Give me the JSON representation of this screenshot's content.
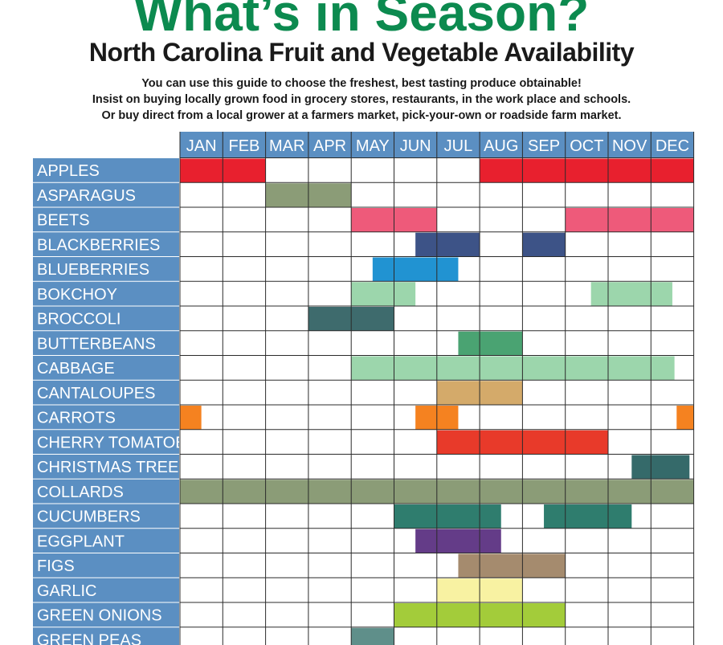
{
  "header": {
    "title": "What’s in Season?",
    "subtitle": "North Carolina Fruit and Vegetable Availability",
    "intro_lines": [
      "You can use this guide to choose the freshest, best tasting produce obtainable!",
      "Insist on buying locally grown food in grocery stores, restaurants, in the work place and schools.",
      "Or buy direct from a local grower at a farmers market, pick-your-own or roadside farm market."
    ]
  },
  "chart_data": {
    "type": "table",
    "months": [
      "JAN",
      "FEB",
      "MAR",
      "APR",
      "MAY",
      "JUN",
      "JUL",
      "AUG",
      "SEP",
      "OCT",
      "NOV",
      "DEC"
    ],
    "header_color": "#5b8fc2",
    "rows": [
      {
        "name": "APPLES",
        "color": "#e8202e",
        "periods": [
          [
            0,
            2
          ],
          [
            7,
            12
          ]
        ]
      },
      {
        "name": "ASPARAGUS",
        "color": "#8b9c77",
        "periods": [
          [
            2,
            4
          ]
        ]
      },
      {
        "name": "BEETS",
        "color": "#ee5a7a",
        "periods": [
          [
            4,
            6
          ],
          [
            9,
            12
          ]
        ]
      },
      {
        "name": "BLACKBERRIES",
        "color": "#3d5387",
        "periods": [
          [
            5.5,
            7
          ],
          [
            8,
            9
          ]
        ]
      },
      {
        "name": "BLUEBERRIES",
        "color": "#2193d2",
        "periods": [
          [
            4.5,
            6.5
          ]
        ]
      },
      {
        "name": "BOKCHOY",
        "color": "#9cd6ac",
        "periods": [
          [
            4,
            5.5
          ],
          [
            9.6,
            11.5
          ]
        ]
      },
      {
        "name": "BROCCOLI",
        "color": "#3e6b6d",
        "periods": [
          [
            3,
            5
          ]
        ]
      },
      {
        "name": "BUTTERBEANS",
        "color": "#4aa372",
        "periods": [
          [
            6.5,
            8
          ]
        ]
      },
      {
        "name": "CABBAGE",
        "color": "#9cd6ac",
        "periods": [
          [
            4,
            11.55
          ]
        ]
      },
      {
        "name": "CANTALOUPES",
        "color": "#d4aa6a",
        "periods": [
          [
            6,
            8
          ]
        ]
      },
      {
        "name": "CARROTS",
        "color": "#f58220",
        "periods": [
          [
            0,
            0.5
          ],
          [
            5.5,
            6.5
          ],
          [
            11.6,
            12
          ]
        ]
      },
      {
        "name": "CHERRY  TOMATOES",
        "color": "#e83a2a",
        "periods": [
          [
            6,
            10
          ]
        ]
      },
      {
        "name": "CHRISTMAS TREES",
        "color": "#356a6a",
        "periods": [
          [
            10.55,
            11.9
          ]
        ]
      },
      {
        "name": "COLLARDS",
        "color": "#8b9c77",
        "periods": [
          [
            0,
            12
          ]
        ]
      },
      {
        "name": "CUCUMBERS",
        "color": "#2f7d6e",
        "periods": [
          [
            5,
            7.5
          ],
          [
            8.5,
            10.55
          ]
        ]
      },
      {
        "name": "EGGPLANT",
        "color": "#643c88",
        "periods": [
          [
            5.5,
            7.5
          ]
        ]
      },
      {
        "name": "FIGS",
        "color": "#a58b6e",
        "periods": [
          [
            6.5,
            9
          ]
        ]
      },
      {
        "name": "GARLIC",
        "color": "#f8f2a2",
        "periods": [
          [
            6,
            8
          ]
        ]
      },
      {
        "name": "GREEN ONIONS",
        "color": "#a3cc3a",
        "periods": [
          [
            5,
            9
          ]
        ]
      },
      {
        "name": "GREEN PEAS",
        "color": "#5f8f8a",
        "periods": [
          [
            4,
            5
          ]
        ]
      }
    ]
  }
}
